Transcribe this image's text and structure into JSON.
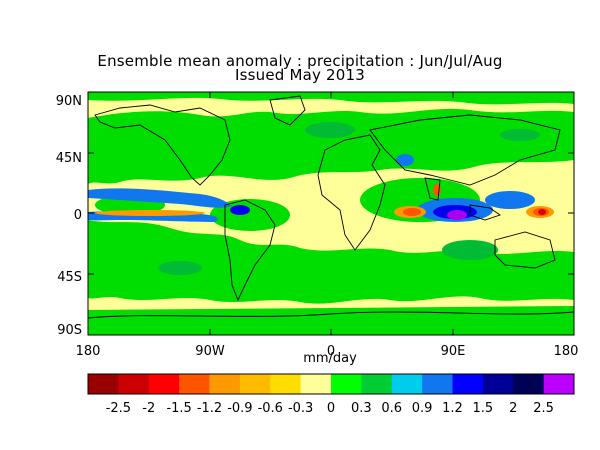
{
  "title": {
    "line1": "Ensemble mean anomaly : precipitation : Jun/Jul/Aug",
    "line2": "Issued May 2013"
  },
  "map": {
    "y_ticks": [
      "90N",
      "45N",
      "0",
      "45S",
      "90S"
    ],
    "x_ticks": [
      "180",
      "90W",
      "0",
      "90E",
      "180"
    ],
    "units": "mm/day",
    "background_color": "#ffff99",
    "wet_colors": {
      "light": "#00dd00",
      "medium": "#00bb33",
      "strong": "#1177ee",
      "very_strong": "#0000ee",
      "extreme": "#aa00ee"
    },
    "dry_colors": {
      "light": "#ff9900",
      "medium": "#ff5500",
      "strong": "#dd0000"
    }
  },
  "colorbar": {
    "colors": [
      "#990000",
      "#cc0000",
      "#ff0000",
      "#ff5500",
      "#ff9900",
      "#ffbb00",
      "#ffdd00",
      "#ffff99",
      "#00ff00",
      "#00cc33",
      "#00ccee",
      "#1177ee",
      "#0000ff",
      "#000099",
      "#000055",
      "#bb00ff"
    ],
    "labels": [
      "-2.5",
      "-2",
      "-1.5",
      "-1.2",
      "-0.9",
      "-0.6",
      "-0.3",
      "0",
      "0.3",
      "0.6",
      "0.9",
      "1.2",
      "1.5",
      "2",
      "2.5"
    ]
  }
}
